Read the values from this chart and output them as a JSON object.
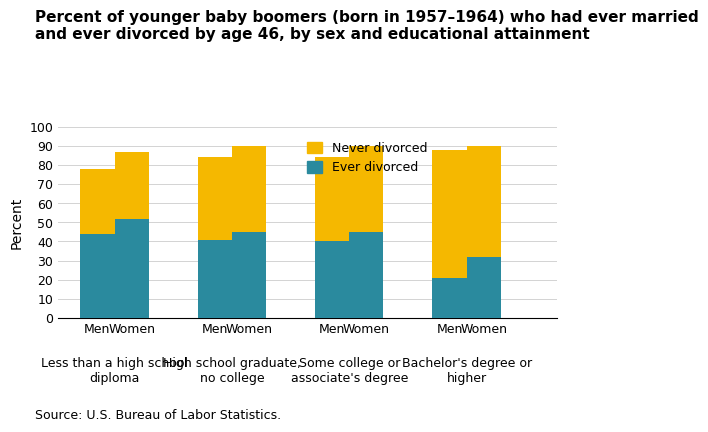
{
  "title": "Percent of younger baby boomers (born in 1957–1964) who had ever married\nand ever divorced by age 46, by sex and educational attainment",
  "ylabel": "Percent",
  "source": "Source: U.S. Bureau of Labor Statistics.",
  "categories": [
    "Less than a high school\ndiploma",
    "High school graduate,\nno college",
    "Some college or\nassociate's degree",
    "Bachelor's degree or\nhigher"
  ],
  "groups": [
    "Men",
    "Women"
  ],
  "ever_divorced": [
    44,
    52,
    41,
    45,
    40,
    45,
    21,
    32
  ],
  "total_married": [
    78,
    87,
    84,
    90,
    84,
    90,
    88,
    90
  ],
  "color_ever_divorced": "#2a8a9e",
  "color_never_divorced": "#f5b800",
  "ylim": [
    0,
    100
  ],
  "yticks": [
    0,
    10,
    20,
    30,
    40,
    50,
    60,
    70,
    80,
    90,
    100
  ],
  "bar_width": 0.35,
  "legend_never": "Never divorced",
  "legend_ever": "Ever divorced",
  "title_fontsize": 11,
  "axis_fontsize": 10,
  "tick_fontsize": 9,
  "source_fontsize": 9
}
